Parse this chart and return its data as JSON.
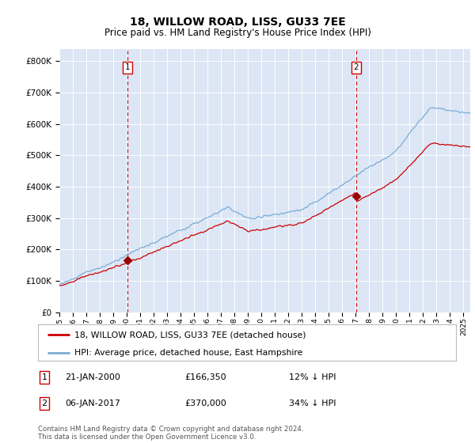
{
  "title": "18, WILLOW ROAD, LISS, GU33 7EE",
  "subtitle": "Price paid vs. HM Land Registry's House Price Index (HPI)",
  "ylabel_ticks": [
    "£0",
    "£100K",
    "£200K",
    "£300K",
    "£400K",
    "£500K",
    "£600K",
    "£700K",
    "£800K"
  ],
  "ytick_values": [
    0,
    100000,
    200000,
    300000,
    400000,
    500000,
    600000,
    700000,
    800000
  ],
  "ylim": [
    0,
    840000
  ],
  "xlim_start": 1995.0,
  "xlim_end": 2025.5,
  "bg_color": "#dce6f5",
  "fig_bg_color": "#ffffff",
  "grid_color": "#ffffff",
  "red_line_color": "#cc0000",
  "blue_line_color": "#7aadd4",
  "marker1_x": 2000.05,
  "marker1_y": 166350,
  "marker2_x": 2017.02,
  "marker2_y": 370000,
  "sale1_date": "21-JAN-2000",
  "sale1_price": "£166,350",
  "sale1_note": "12% ↓ HPI",
  "sale2_date": "06-JAN-2017",
  "sale2_price": "£370,000",
  "sale2_note": "34% ↓ HPI",
  "legend_label_red": "18, WILLOW ROAD, LISS, GU33 7EE (detached house)",
  "legend_label_blue": "HPI: Average price, detached house, East Hampshire",
  "footer": "Contains HM Land Registry data © Crown copyright and database right 2024.\nThis data is licensed under the Open Government Licence v3.0.",
  "xtick_labels": [
    "1995",
    "1996",
    "1997",
    "1998",
    "1999",
    "2000",
    "2001",
    "2002",
    "2003",
    "2004",
    "2005",
    "2006",
    "2007",
    "2008",
    "2009",
    "2010",
    "2011",
    "2012",
    "2013",
    "2014",
    "2015",
    "2016",
    "2017",
    "2018",
    "2019",
    "2020",
    "2021",
    "2022",
    "2023",
    "2024",
    "2025"
  ]
}
